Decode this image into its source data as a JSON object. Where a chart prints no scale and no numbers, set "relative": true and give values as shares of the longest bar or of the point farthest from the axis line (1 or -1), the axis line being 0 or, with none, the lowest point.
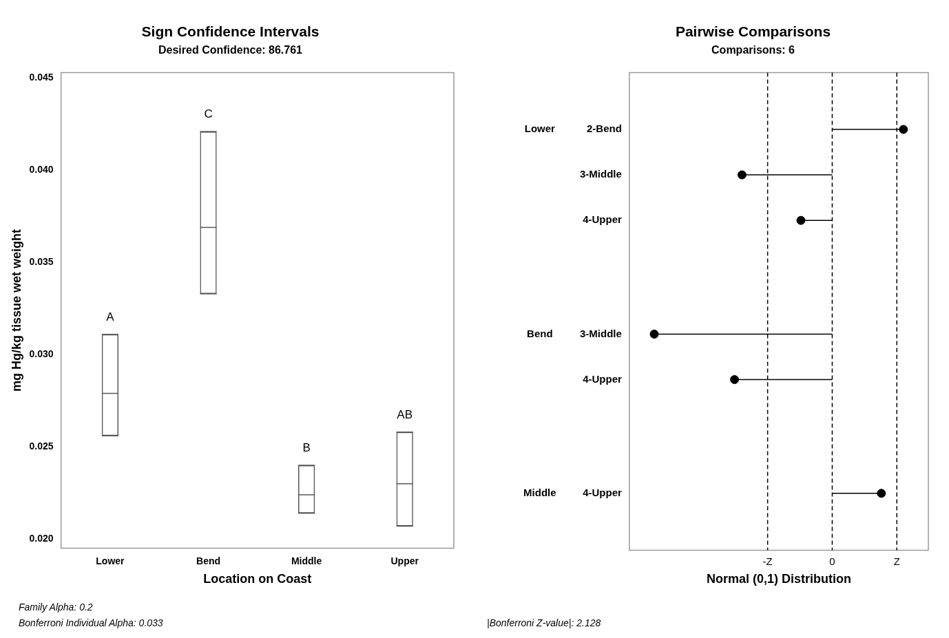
{
  "chart_data": [
    {
      "type": "box",
      "title": "Sign Confidence Intervals",
      "subtitle": "Desired Confidence: 86.761",
      "xlabel": "Location on Coast",
      "ylabel": "mg Hg/kg tissue wet weight",
      "categories": [
        "Lower",
        "Bend",
        "Middle",
        "Upper"
      ],
      "color": "#555555",
      "boxes": [
        {
          "low": 0.0256,
          "q1": 0.0256,
          "median": 0.0279,
          "q3": 0.0311,
          "high": 0.0311
        },
        {
          "low": 0.0333,
          "q1": 0.0333,
          "median": 0.0369,
          "q3": 0.0421,
          "high": 0.0421
        },
        {
          "low": 0.0214,
          "q1": 0.0214,
          "median": 0.0224,
          "q3": 0.024,
          "high": 0.024
        },
        {
          "low": 0.0207,
          "q1": 0.0207,
          "median": 0.023,
          "q3": 0.0258,
          "high": 0.0258
        }
      ],
      "ylim": [
        0.0195,
        0.0453
      ],
      "yticks": [
        {
          "value": 0.02,
          "label": "0.020"
        },
        {
          "value": 0.025,
          "label": "0.025"
        },
        {
          "value": 0.03,
          "label": "0.030"
        },
        {
          "value": 0.035,
          "label": "0.035"
        },
        {
          "value": 0.04,
          "label": "0.040"
        },
        {
          "value": 0.045,
          "label": "0.045"
        }
      ],
      "annotations": [
        "A",
        "C",
        "B",
        "AB",
        "Family Alpha: 0.2",
        "Bonferroni Individual Alpha: 0.033"
      ]
    },
    {
      "type": "lollipop",
      "orientation": "horizontal",
      "relative": true,
      "title": "Pairwise Comparisons",
      "subtitle": "Comparisons: 6",
      "xlabel": "Normal (0,1) Distribution",
      "color": "#000000",
      "categories": [
        "2-Bend",
        null,
        "3-Middle",
        null,
        "4-Upper",
        null,
        null,
        null,
        null,
        "3-Middle",
        null,
        "4-Upper",
        null,
        null,
        null,
        null,
        "4-Upper"
      ],
      "values": [
        0.4,
        null,
        -0.507,
        null,
        -0.176,
        null,
        null,
        null,
        null,
        -1,
        null,
        -0.549,
        null,
        null,
        null,
        null,
        0.276
      ],
      "ref_lines": [
        {
          "axis": "x",
          "value": -0.363,
          "label": "-Z",
          "line_style": "dashed"
        },
        {
          "axis": "x",
          "value": 0,
          "label": "0",
          "line_style": "dashed"
        },
        {
          "axis": "x",
          "value": 0.363,
          "label": "Z",
          "line_style": "dashed"
        }
      ],
      "annotations": [
        "Lower",
        "Bend",
        "Middle",
        "|Bonferroni Z-value|: 2.128"
      ]
    }
  ]
}
